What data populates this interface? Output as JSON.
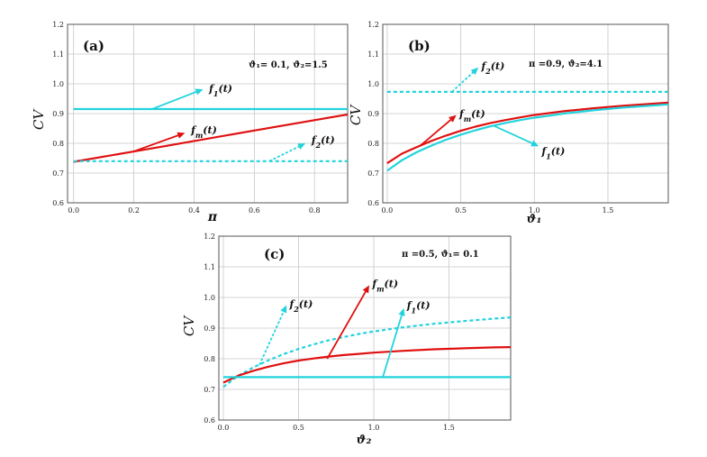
{
  "colors": {
    "cyan": "#22d3dd",
    "red": "#e01010",
    "grid": "#c8c8c8",
    "frame": "#555555"
  },
  "chart_data": [
    {
      "type": "line",
      "panel_label": "(a)",
      "params_text": "ϑ₁= 0.1, ϑ₂=1.5",
      "xlabel": "π",
      "ylabel": "CV",
      "xlim": [
        -0.02,
        0.91
      ],
      "ylim": [
        0.6,
        1.2
      ],
      "xticks": [
        0.0,
        0.2,
        0.4,
        0.6,
        0.8
      ],
      "xtick_labels": [
        "0.0",
        "0.2",
        "0.4",
        "0.6",
        "0.8"
      ],
      "yticks": [
        0.6,
        0.7,
        0.8,
        0.9,
        1.0,
        1.1,
        1.2
      ],
      "ytick_labels": [
        "0.6",
        "0.7",
        "0.8",
        "0.9",
        "1.0",
        "1.1",
        "1.2"
      ],
      "series": [
        {
          "name": "f1(t)",
          "color": "cyan",
          "dashed": false,
          "x": [
            0.0,
            0.91
          ],
          "y": [
            0.915,
            0.915
          ]
        },
        {
          "name": "fm(t)",
          "color": "red",
          "dashed": false,
          "x": [
            0.0,
            0.3,
            0.6,
            0.91
          ],
          "y": [
            0.738,
            0.79,
            0.843,
            0.897
          ]
        },
        {
          "name": "f2(t)",
          "color": "cyan",
          "dashed": true,
          "x": [
            0.0,
            0.91
          ],
          "y": [
            0.74,
            0.74
          ]
        }
      ],
      "annotations": [
        {
          "sym": "f",
          "sub": "1",
          "color": "cyan",
          "dashed": false,
          "from": [
            0.26,
            0.915
          ],
          "to": [
            0.43,
            0.982
          ],
          "text_at": [
            0.45,
            0.985
          ]
        },
        {
          "sym": "f",
          "sub": "m",
          "color": "red",
          "dashed": false,
          "from": [
            0.2,
            0.773
          ],
          "to": [
            0.37,
            0.835
          ],
          "text_at": [
            0.39,
            0.845
          ]
        },
        {
          "sym": "f",
          "sub": "2",
          "color": "cyan",
          "dashed": true,
          "from": [
            0.65,
            0.74
          ],
          "to": [
            0.77,
            0.8
          ],
          "text_at": [
            0.79,
            0.812
          ]
        }
      ]
    },
    {
      "type": "line",
      "panel_label": "(b)",
      "params_text": "π =0.9,  ϑ₂=4.1",
      "xlabel": "ϑ₁",
      "ylabel": "CV",
      "xlim": [
        -0.03,
        1.91
      ],
      "ylim": [
        0.6,
        1.2
      ],
      "xticks": [
        0.0,
        0.5,
        1.0,
        1.5
      ],
      "xtick_labels": [
        "0.0",
        "0.5",
        "1.0",
        "1.5"
      ],
      "yticks": [
        0.6,
        0.7,
        0.8,
        0.9,
        1.0,
        1.1,
        1.2
      ],
      "ytick_labels": [
        "0.6",
        "0.7",
        "0.8",
        "0.9",
        "1.0",
        "1.1",
        "1.2"
      ],
      "series": [
        {
          "name": "f2(t)",
          "color": "cyan",
          "dashed": true,
          "x": [
            0.0,
            1.91
          ],
          "y": [
            0.973,
            0.973
          ]
        },
        {
          "name": "fm(t)",
          "color": "red",
          "dashed": false,
          "x": [
            0.0,
            0.1,
            0.2,
            0.3,
            0.4,
            0.5,
            0.6,
            0.7,
            0.8,
            0.9,
            1.0,
            1.2,
            1.4,
            1.6,
            1.8,
            1.91
          ],
          "y": [
            0.733,
            0.765,
            0.787,
            0.808,
            0.826,
            0.842,
            0.856,
            0.868,
            0.878,
            0.887,
            0.895,
            0.908,
            0.918,
            0.926,
            0.933,
            0.937
          ]
        },
        {
          "name": "f1(t)",
          "color": "cyan",
          "dashed": false,
          "x": [
            0.0,
            0.1,
            0.2,
            0.3,
            0.4,
            0.5,
            0.6,
            0.7,
            0.8,
            0.9,
            1.0,
            1.2,
            1.4,
            1.6,
            1.8,
            1.91
          ],
          "y": [
            0.708,
            0.743,
            0.77,
            0.792,
            0.812,
            0.829,
            0.844,
            0.857,
            0.868,
            0.878,
            0.886,
            0.9,
            0.911,
            0.92,
            0.927,
            0.931
          ]
        }
      ],
      "annotations": [
        {
          "sym": "f",
          "sub": "2",
          "color": "cyan",
          "dashed": true,
          "from": [
            0.44,
            0.973
          ],
          "to": [
            0.62,
            1.055
          ],
          "text_at": [
            0.64,
            1.06
          ]
        },
        {
          "sym": "f",
          "sub": "m",
          "color": "red",
          "dashed": false,
          "from": [
            0.22,
            0.79
          ],
          "to": [
            0.47,
            0.895
          ],
          "text_at": [
            0.49,
            0.9
          ]
        },
        {
          "sym": "f",
          "sub": "1",
          "color": "cyan",
          "dashed": false,
          "from": [
            0.72,
            0.86
          ],
          "to": [
            1.03,
            0.79
          ],
          "text_at": [
            1.05,
            0.775
          ]
        }
      ]
    },
    {
      "type": "line",
      "panel_label": "(c)",
      "params_text": "π =0.5, ϑ₁= 0.1",
      "xlabel": "ϑ₂",
      "ylabel": "CV",
      "xlim": [
        -0.03,
        1.91
      ],
      "ylim": [
        0.6,
        1.2
      ],
      "xticks": [
        0.0,
        0.5,
        1.0,
        1.5
      ],
      "xtick_labels": [
        "0.0",
        "0.5",
        "1.0",
        "1.5"
      ],
      "yticks": [
        0.6,
        0.7,
        0.8,
        0.9,
        1.0,
        1.1,
        1.2
      ],
      "ytick_labels": [
        "0.6",
        "0.7",
        "0.8",
        "0.9",
        "1.0",
        "1.1",
        "1.2"
      ],
      "series": [
        {
          "name": "f2(t)",
          "color": "cyan",
          "dashed": true,
          "x": [
            0.0,
            0.1,
            0.2,
            0.3,
            0.4,
            0.5,
            0.6,
            0.7,
            0.8,
            0.9,
            1.0,
            1.2,
            1.4,
            1.6,
            1.8,
            1.91
          ],
          "y": [
            0.708,
            0.745,
            0.772,
            0.795,
            0.815,
            0.832,
            0.847,
            0.86,
            0.871,
            0.881,
            0.889,
            0.903,
            0.914,
            0.923,
            0.931,
            0.935
          ]
        },
        {
          "name": "fm(t)",
          "color": "red",
          "dashed": false,
          "x": [
            0.0,
            0.1,
            0.2,
            0.3,
            0.4,
            0.5,
            0.6,
            0.7,
            0.8,
            0.9,
            1.0,
            1.2,
            1.4,
            1.6,
            1.8,
            1.91
          ],
          "y": [
            0.722,
            0.745,
            0.761,
            0.774,
            0.785,
            0.794,
            0.801,
            0.807,
            0.812,
            0.816,
            0.82,
            0.826,
            0.831,
            0.834,
            0.837,
            0.838
          ]
        },
        {
          "name": "f1(t)",
          "color": "cyan",
          "dashed": false,
          "x": [
            0.0,
            1.91
          ],
          "y": [
            0.74,
            0.74
          ]
        }
      ],
      "annotations": [
        {
          "sym": "f",
          "sub": "2",
          "color": "cyan",
          "dashed": true,
          "from": [
            0.24,
            0.78
          ],
          "to": [
            0.42,
            0.975
          ],
          "text_at": [
            0.44,
            0.98
          ]
        },
        {
          "sym": "f",
          "sub": "m",
          "color": "red",
          "dashed": false,
          "from": [
            0.69,
            0.8
          ],
          "to": [
            0.97,
            1.04
          ],
          "text_at": [
            0.99,
            1.045
          ]
        },
        {
          "sym": "f",
          "sub": "1",
          "color": "cyan",
          "dashed": false,
          "from": [
            1.06,
            0.74
          ],
          "to": [
            1.2,
            0.965
          ],
          "text_at": [
            1.22,
            0.975
          ]
        }
      ]
    }
  ]
}
